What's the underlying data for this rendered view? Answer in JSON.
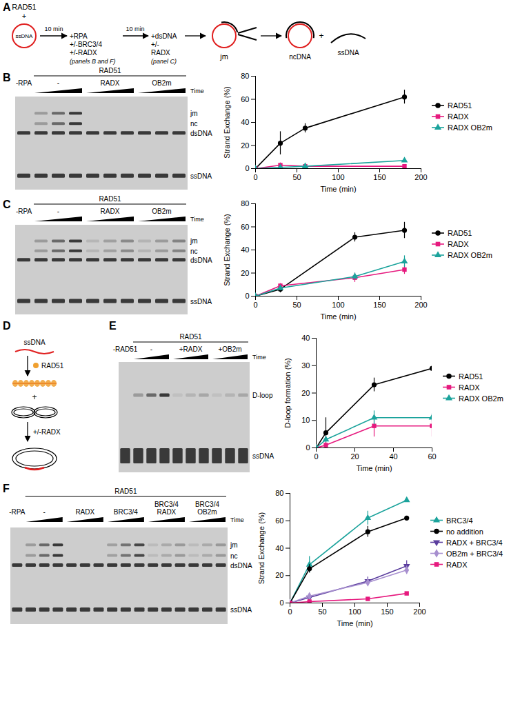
{
  "chart_data": [
    {
      "type": "line",
      "x": [
        0,
        30,
        60,
        180
      ],
      "xlim": [
        0,
        200
      ],
      "xticks": [
        0,
        50,
        100,
        150,
        200
      ],
      "ylim": [
        0,
        80
      ],
      "yticks": [
        0,
        20,
        40,
        60,
        80
      ],
      "x_label": "Time (min)",
      "y_label": "Strand Exchange (%)",
      "legend": "right",
      "series": [
        {
          "name": "RAD51",
          "color": "#000000",
          "marker": "circle",
          "values": [
            0,
            22,
            35,
            62
          ],
          "errors": [
            0,
            10,
            4,
            6
          ]
        },
        {
          "name": "RADX",
          "color": "#e6197e",
          "marker": "square",
          "values": [
            0,
            3,
            2,
            2
          ],
          "errors": [
            0,
            2,
            1,
            0
          ]
        },
        {
          "name": "RADX OB2m",
          "color": "#1ba39c",
          "marker": "triangle",
          "values": [
            0,
            1,
            2,
            7
          ],
          "errors": [
            0,
            0.5,
            0.5,
            0
          ]
        }
      ]
    },
    {
      "type": "line",
      "x": [
        0,
        30,
        120,
        180
      ],
      "xlim": [
        0,
        200
      ],
      "xticks": [
        0,
        50,
        100,
        150,
        200
      ],
      "ylim": [
        0,
        80
      ],
      "yticks": [
        0,
        20,
        40,
        60,
        80
      ],
      "x_label": "Time (min)",
      "y_label": "Strand Exchange (%)",
      "legend": "right",
      "series": [
        {
          "name": "RAD51",
          "color": "#000000",
          "marker": "circle",
          "values": [
            0,
            6,
            51,
            57
          ],
          "errors": [
            0,
            3,
            4,
            7
          ]
        },
        {
          "name": "RADX",
          "color": "#e6197e",
          "marker": "square",
          "values": [
            0,
            9,
            16,
            23
          ],
          "errors": [
            0,
            2,
            4,
            4
          ]
        },
        {
          "name": "RADX OB2m",
          "color": "#1ba39c",
          "marker": "triangle",
          "values": [
            0,
            7,
            17,
            30
          ],
          "errors": [
            0,
            2,
            3,
            5
          ]
        }
      ]
    },
    {
      "type": "line",
      "x": [
        0,
        5,
        30,
        60
      ],
      "xlim": [
        0,
        60
      ],
      "xticks": [
        0,
        20,
        40,
        60
      ],
      "ylim": [
        0,
        40
      ],
      "yticks": [
        0,
        10,
        20,
        30,
        40
      ],
      "x_label": "Time (min)",
      "y_label": "D-loop formation (%)",
      "legend": "right",
      "series": [
        {
          "name": "RAD51",
          "color": "#000000",
          "marker": "circle",
          "values": [
            0,
            5.5,
            23,
            29
          ],
          "errors": [
            0,
            5.5,
            2.5,
            1
          ]
        },
        {
          "name": "RADX",
          "color": "#e6197e",
          "marker": "square",
          "values": [
            0,
            1,
            8,
            8
          ],
          "errors": [
            0,
            1,
            4,
            4
          ]
        },
        {
          "name": "RADX OB2m",
          "color": "#1ba39c",
          "marker": "triangle",
          "values": [
            0,
            3,
            11,
            11
          ],
          "errors": [
            0,
            1,
            2.5,
            1.5
          ]
        }
      ]
    },
    {
      "type": "line",
      "x": [
        0,
        30,
        120,
        180
      ],
      "xlim": [
        0,
        200
      ],
      "xticks": [
        0,
        50,
        100,
        150,
        200
      ],
      "ylim": [
        0,
        80
      ],
      "yticks": [
        0,
        20,
        40,
        60,
        80
      ],
      "x_label": "Time (min)",
      "y_label": "Strand Exchange (%)",
      "legend": "right",
      "series": [
        {
          "name": "BRC3/4",
          "color": "#1ba39c",
          "marker": "triangle",
          "values": [
            0,
            28,
            62,
            75
          ],
          "errors": [
            0,
            6,
            5,
            0
          ]
        },
        {
          "name": "no addition",
          "color": "#000000",
          "marker": "circle",
          "values": [
            0,
            25,
            52,
            62
          ],
          "errors": [
            0,
            3,
            4,
            0
          ]
        },
        {
          "name": "RADX + BRC3/4",
          "color": "#5b3e9e",
          "marker": "triangle-down",
          "values": [
            0,
            4,
            16,
            27
          ],
          "errors": [
            0,
            1,
            3,
            4
          ]
        },
        {
          "name": "OB2m + BRC3/4",
          "color": "#a78fcf",
          "marker": "diamond",
          "values": [
            0,
            5,
            15,
            24
          ],
          "errors": [
            0,
            1,
            2,
            3
          ]
        },
        {
          "name": "RADX",
          "color": "#e6197e",
          "marker": "square",
          "values": [
            0,
            1,
            3,
            7
          ],
          "errors": [
            0,
            0.5,
            1,
            0
          ]
        }
      ]
    }
  ],
  "figure": {
    "panel_A": {
      "label": "A",
      "reagent": "RAD51",
      "plus": "+",
      "substrate": "ssDNA",
      "step1": {
        "time": "10 min",
        "additions": [
          "+RPA",
          "+/-BRC3/4",
          "+/-RADX"
        ],
        "note": "(panels B and F)"
      },
      "step2": {
        "time": "10 min",
        "additions": [
          "+dsDNA",
          "+/-",
          "RADX"
        ],
        "note": "(panel C)"
      },
      "intermediate": "jm",
      "product": "ncDNA",
      "product_plus": "+",
      "released": "ssDNA"
    },
    "panel_D": {
      "label": "D",
      "substrate": "ssDNA",
      "protein": "RAD51",
      "plus": "+",
      "addition": "+/-RADX"
    },
    "gels": [
      {
        "label": "B",
        "header": "RAD51",
        "time": "Time",
        "lanes": [
          {
            "label": "-RPA",
            "time": false
          },
          {
            "label": "-",
            "time": true
          },
          {
            "label": "RADX",
            "time": true
          },
          {
            "label": "OB2m",
            "time": true
          }
        ],
        "bands": [
          "jm",
          "nc",
          "dsDNA",
          "ssDNA"
        ]
      },
      {
        "label": "C",
        "header": "RAD51",
        "time": "Time",
        "lanes": [
          {
            "label": "-RPA",
            "time": false
          },
          {
            "label": "-",
            "time": true
          },
          {
            "label": "RADX",
            "time": true
          },
          {
            "label": "OB2m",
            "time": true
          }
        ],
        "bands": [
          "jm",
          "nc",
          "dsDNA",
          "ssDNA"
        ]
      },
      {
        "label": "E",
        "header": "RAD51",
        "time": "Time",
        "lanes": [
          {
            "label": "-RAD51",
            "time": false
          },
          {
            "label": "-",
            "time": true
          },
          {
            "label": "+RADX",
            "time": true
          },
          {
            "label": "+OB2m",
            "time": true
          }
        ],
        "bands": [
          "D-loop",
          "ssDNA"
        ]
      },
      {
        "label": "F",
        "header": "RAD51",
        "time": "Time",
        "lanes": [
          {
            "label": "-RPA",
            "time": false
          },
          {
            "label": "-",
            "time": true
          },
          {
            "label": "RADX",
            "time": true
          },
          {
            "label": "BRC3/4",
            "time": true
          },
          {
            "label": [
              "BRC3/4",
              "RADX"
            ],
            "time": true
          },
          {
            "label": [
              "BRC3/4",
              "OB2m"
            ],
            "time": true
          }
        ],
        "bands": [
          "jm",
          "nc",
          "dsDNA",
          "ssDNA"
        ]
      }
    ]
  }
}
